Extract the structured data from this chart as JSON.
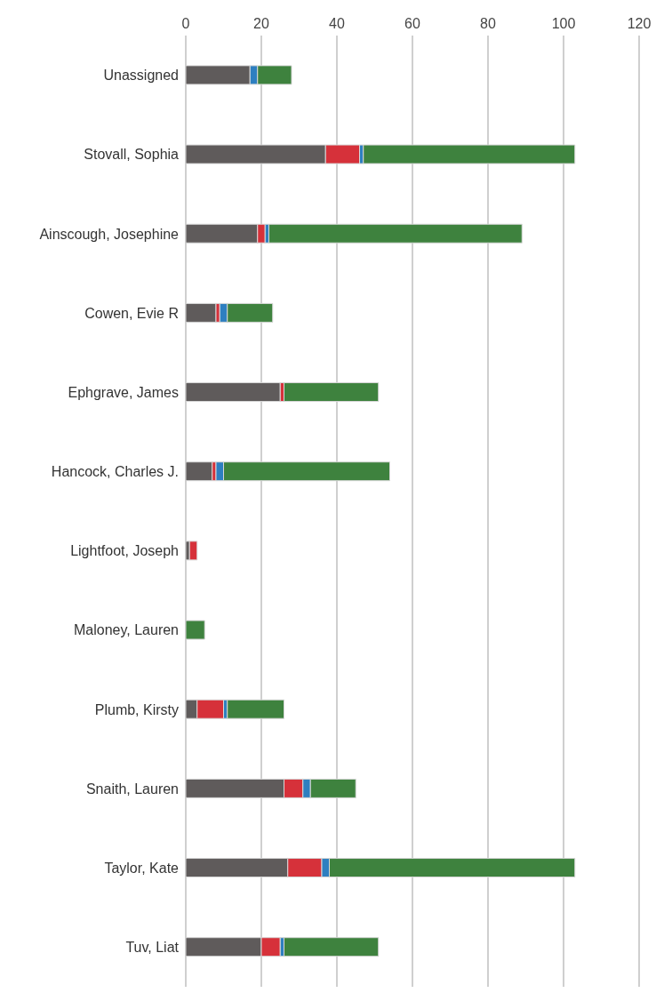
{
  "chart_data": {
    "type": "bar",
    "orientation": "horizontal",
    "stacked": true,
    "categories": [
      "Unassigned",
      "Stovall, Sophia",
      "Ainscough, Josephine",
      "Cowen, Evie R",
      "Ephgrave, James",
      "Hancock, Charles J.",
      "Lightfoot, Joseph",
      "Maloney, Lauren",
      "Plumb, Kirsty",
      "Snaith, Lauren",
      "Taylor, Kate",
      "Tuv, Liat"
    ],
    "series": [
      {
        "color": "#5f5b5b",
        "values": [
          17,
          37,
          19,
          8,
          25,
          7,
          1,
          0,
          3,
          26,
          27,
          20
        ]
      },
      {
        "color": "#d6313a",
        "values": [
          0,
          9,
          2,
          1,
          1,
          1,
          2,
          0,
          7,
          5,
          9,
          5
        ]
      },
      {
        "color": "#2e7fc0",
        "values": [
          2,
          1,
          1,
          2,
          0,
          2,
          0,
          0,
          1,
          2,
          2,
          1
        ]
      },
      {
        "color": "#3e823e",
        "values": [
          9,
          56,
          67,
          12,
          25,
          44,
          0,
          5,
          15,
          12,
          65,
          25
        ]
      }
    ],
    "xlim": [
      0,
      120
    ],
    "xticks": [
      0,
      20,
      40,
      60,
      80,
      100,
      120
    ],
    "grid": "x",
    "legend": false
  }
}
